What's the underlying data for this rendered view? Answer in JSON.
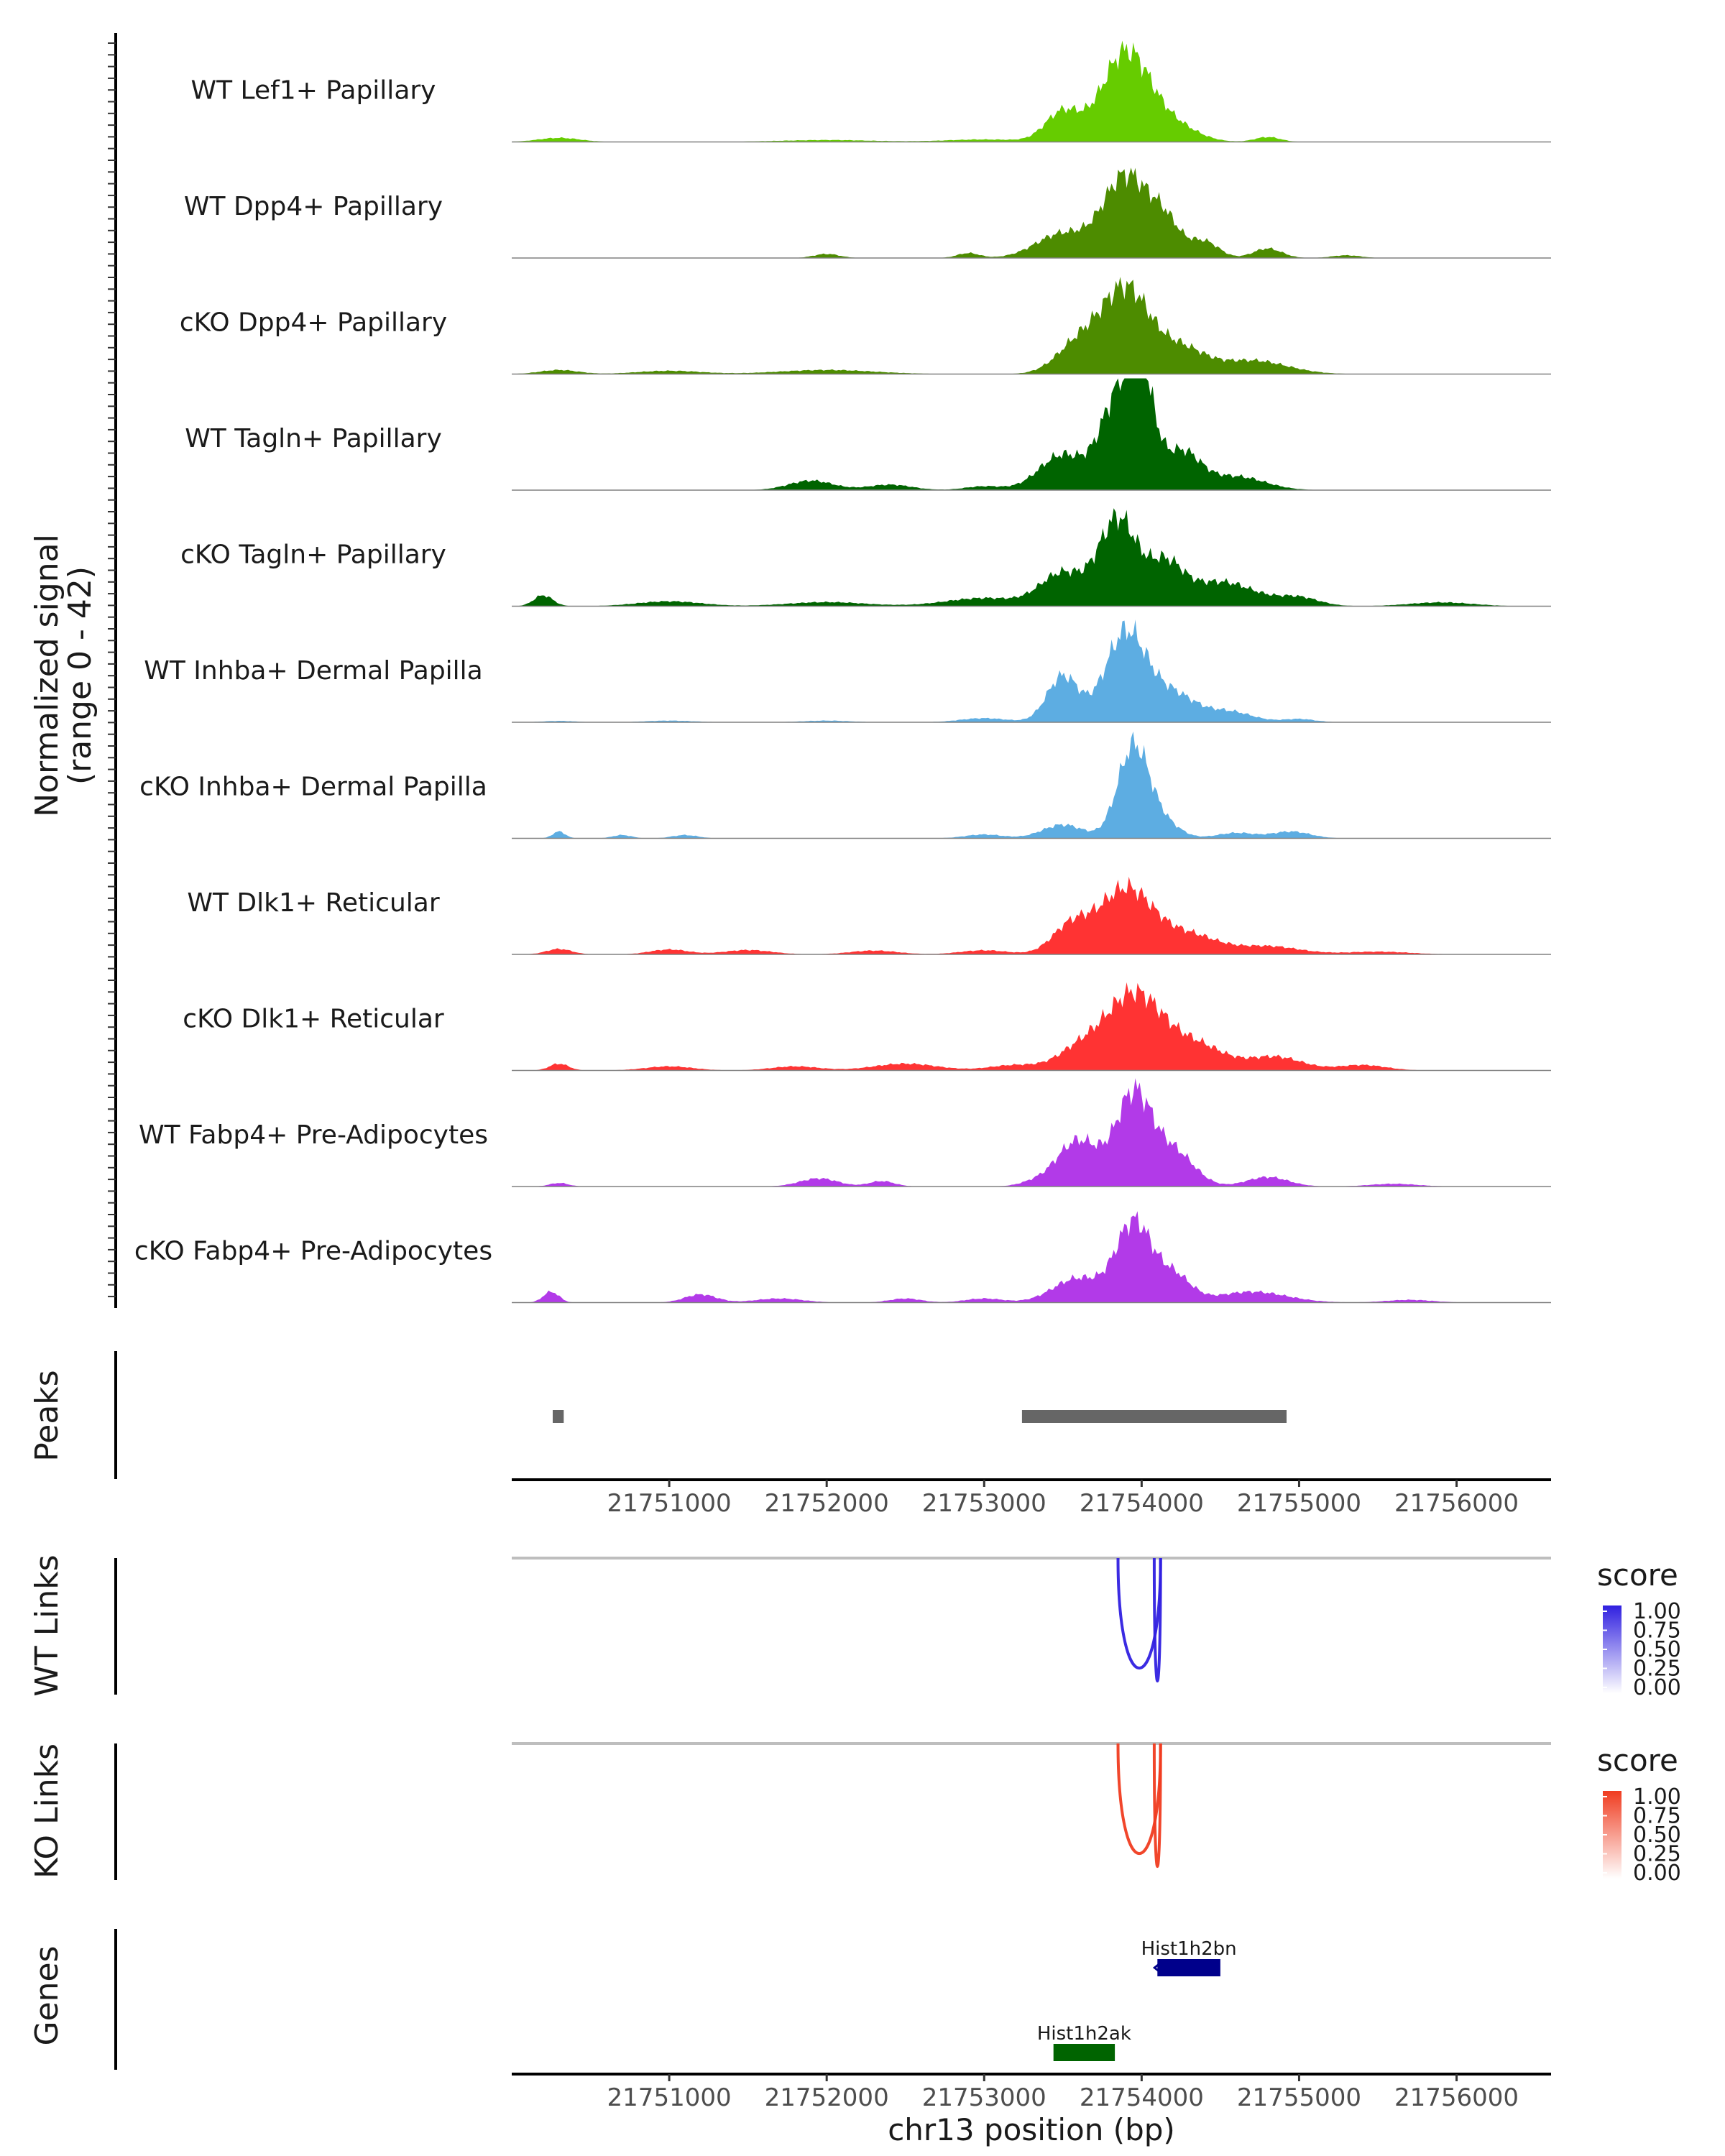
{
  "chart_data": {
    "type": "area",
    "title": "",
    "region": {
      "chrom": "chr13",
      "start": 21750000,
      "end": 21756600
    },
    "xlabel": "chr13 position (bp)",
    "x_ticks": [
      "21751000",
      "21752000",
      "21753000",
      "21754000",
      "21755000",
      "21756000"
    ],
    "x_tick_values": [
      21751000,
      21752000,
      21753000,
      21754000,
      21755000,
      21756000
    ],
    "coverage": {
      "ylabel_line1": "Normalized signal",
      "ylabel_line2": "(range 0 - 42)",
      "ylim": [
        0,
        42
      ],
      "tracks": [
        {
          "name": "WT Lef1+ Papillary",
          "color": "#66cc00",
          "peaks": [
            [
              21750300,
              1.5,
              130
            ],
            [
              21752000,
              0.7,
              300
            ],
            [
              21753000,
              0.9,
              250
            ],
            [
              21753500,
              11,
              110
            ],
            [
              21753900,
              33,
              150
            ],
            [
              21754200,
              6,
              150
            ],
            [
              21754800,
              1.8,
              80
            ]
          ]
        },
        {
          "name": "WT Dpp4+ Papillary",
          "color": "#4d8c00",
          "peaks": [
            [
              21752000,
              1.5,
              80
            ],
            [
              21752900,
              1.8,
              70
            ],
            [
              21753500,
              9,
              170
            ],
            [
              21753900,
              30,
              140
            ],
            [
              21754150,
              12,
              100
            ],
            [
              21754400,
              6,
              90
            ],
            [
              21754800,
              3.5,
              90
            ],
            [
              21755300,
              1,
              90
            ]
          ]
        },
        {
          "name": "cKO Dpp4+ Papillary",
          "color": "#4d8c00",
          "peaks": [
            [
              21750300,
              1.5,
              120
            ],
            [
              21751000,
              1.2,
              200
            ],
            [
              21752000,
              1.5,
              300
            ],
            [
              21753600,
              11,
              140
            ],
            [
              21753900,
              31,
              150
            ],
            [
              21754250,
              9,
              150
            ],
            [
              21754700,
              5,
              220
            ]
          ]
        },
        {
          "name": "WT Tagln+ Papillary",
          "color": "#006400",
          "peaks": [
            [
              21751900,
              3.5,
              140
            ],
            [
              21752400,
              2,
              140
            ],
            [
              21753000,
              1.4,
              120
            ],
            [
              21753500,
              13,
              150
            ],
            [
              21753850,
              33,
              110
            ],
            [
              21754000,
              35,
              80
            ],
            [
              21754250,
              14,
              120
            ],
            [
              21754600,
              5,
              180
            ]
          ]
        },
        {
          "name": "cKO Tagln+ Papillary",
          "color": "#006400",
          "peaks": [
            [
              21750200,
              4,
              60
            ],
            [
              21751000,
              1.8,
              200
            ],
            [
              21752000,
              1.5,
              250
            ],
            [
              21753000,
              3,
              240
            ],
            [
              21753500,
              12,
              140
            ],
            [
              21753850,
              32,
              120
            ],
            [
              21754150,
              14,
              110
            ],
            [
              21754500,
              9,
              220
            ],
            [
              21755000,
              3,
              130
            ],
            [
              21755900,
              1.4,
              200
            ]
          ]
        },
        {
          "name": "WT Inhba+ Dermal Papilla",
          "color": "#5dade2",
          "peaks": [
            [
              21750300,
              0.5,
              100
            ],
            [
              21751000,
              0.6,
              150
            ],
            [
              21752000,
              0.6,
              150
            ],
            [
              21753000,
              1.5,
              150
            ],
            [
              21753500,
              17,
              100
            ],
            [
              21753900,
              33,
              130
            ],
            [
              21754200,
              10,
              140
            ],
            [
              21754550,
              4,
              150
            ],
            [
              21755000,
              1.2,
              100
            ]
          ]
        },
        {
          "name": "cKO Inhba+ Dermal Papilla",
          "color": "#5dade2",
          "peaks": [
            [
              21750300,
              2.5,
              40
            ],
            [
              21750700,
              1.2,
              60
            ],
            [
              21751100,
              1.2,
              80
            ],
            [
              21753000,
              1.4,
              120
            ],
            [
              21753500,
              5,
              130
            ],
            [
              21753950,
              34,
              100
            ],
            [
              21754150,
              5,
              100
            ],
            [
              21754600,
              2,
              120
            ],
            [
              21754950,
              2.5,
              120
            ]
          ]
        },
        {
          "name": "WT Dlk1+ Reticular",
          "color": "#ff3333",
          "peaks": [
            [
              21750300,
              2,
              80
            ],
            [
              21751000,
              1.8,
              120
            ],
            [
              21751500,
              1.6,
              150
            ],
            [
              21752300,
              1.4,
              150
            ],
            [
              21753000,
              1.5,
              150
            ],
            [
              21753550,
              10,
              120
            ],
            [
              21753900,
              24,
              170
            ],
            [
              21754300,
              7,
              180
            ],
            [
              21754800,
              3,
              200
            ],
            [
              21755500,
              1,
              200
            ]
          ]
        },
        {
          "name": "cKO Dlk1+ Reticular",
          "color": "#ff3333",
          "peaks": [
            [
              21750300,
              2.5,
              60
            ],
            [
              21751000,
              1.5,
              150
            ],
            [
              21751800,
              1.5,
              150
            ],
            [
              21752500,
              2.5,
              200
            ],
            [
              21753200,
              2,
              160
            ],
            [
              21753600,
              7,
              140
            ],
            [
              21753950,
              28,
              180
            ],
            [
              21754350,
              9,
              180
            ],
            [
              21754850,
              5,
              170
            ],
            [
              21755400,
              2,
              150
            ]
          ]
        },
        {
          "name": "WT Fabp4+ Pre-Adipocytes",
          "color": "#b23ae8",
          "peaks": [
            [
              21750300,
              1.3,
              60
            ],
            [
              21751950,
              3,
              120
            ],
            [
              21752350,
              2,
              80
            ],
            [
              21753300,
              1.1,
              90
            ],
            [
              21753600,
              17,
              140
            ],
            [
              21753950,
              33,
              110
            ],
            [
              21754200,
              13,
              130
            ],
            [
              21754800,
              3.5,
              130
            ],
            [
              21755600,
              1,
              150
            ]
          ]
        },
        {
          "name": "cKO Fabp4+ Pre-Adipocytes",
          "color": "#b23ae8",
          "peaks": [
            [
              21750250,
              4,
              50
            ],
            [
              21751200,
              3,
              100
            ],
            [
              21751700,
              1.5,
              150
            ],
            [
              21752500,
              1.5,
              100
            ],
            [
              21753000,
              1.5,
              120
            ],
            [
              21753600,
              9,
              160
            ],
            [
              21753950,
              29,
              110
            ],
            [
              21754200,
              10,
              110
            ],
            [
              21754700,
              4,
              220
            ],
            [
              21755700,
              1,
              150
            ]
          ]
        }
      ]
    },
    "peaks_track": {
      "label": "Peaks",
      "color": "#666666",
      "regions": [
        [
          21750260,
          21750330
        ],
        [
          21753240,
          21754920
        ]
      ]
    },
    "links": [
      {
        "label": "WT Links",
        "legend_title": "score",
        "legend_ticks": [
          "1.00",
          "0.75",
          "0.50",
          "0.25",
          "0.00"
        ],
        "color_low": "#ffffff",
        "color_high": "#3020e0",
        "arcs": [
          [
            21753850,
            21754120,
            0.85,
            0.95
          ],
          [
            21754080,
            21754120,
            0.95,
            0.95
          ]
        ]
      },
      {
        "label": "KO Links",
        "legend_title": "score",
        "legend_ticks": [
          "1.00",
          "0.75",
          "0.50",
          "0.25",
          "0.00"
        ],
        "color_low": "#ffffff",
        "color_high": "#f03c20",
        "arcs": [
          [
            21753850,
            21754120,
            0.85,
            0.95
          ],
          [
            21754080,
            21754120,
            0.95,
            0.95
          ]
        ]
      }
    ],
    "genes": {
      "label": "Genes",
      "items": [
        {
          "name": "Hist1h2bn",
          "start": 21754100,
          "end": 21754500,
          "color": "#00008b",
          "row": 0
        },
        {
          "name": "Hist1h2ak",
          "start": 21753440,
          "end": 21753830,
          "color": "#006400",
          "row": 1
        }
      ]
    }
  }
}
